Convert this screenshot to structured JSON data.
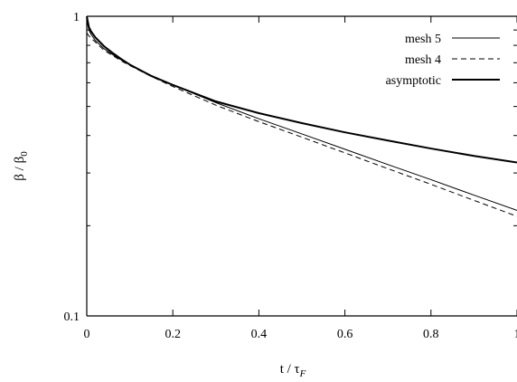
{
  "chart_data": {
    "type": "line",
    "xlabel": "t / τF",
    "xlabel_parts": {
      "main": "t / τ",
      "sub": "F"
    },
    "ylabel": "β / β0",
    "ylabel_parts": {
      "main": "β / β",
      "sub": "0"
    },
    "xlim": [
      0,
      1
    ],
    "ylim": [
      0.1,
      1
    ],
    "yscale": "log",
    "grid": false,
    "legend_position": "top-right",
    "x_ticks": [
      0,
      0.2,
      0.4,
      0.6,
      0.8,
      1
    ],
    "x_tick_labels": [
      "0",
      "0.2",
      "0.4",
      "0.6",
      "0.8",
      "1"
    ],
    "y_ticks": [
      0.1,
      1
    ],
    "y_tick_labels": [
      "0.1",
      "1"
    ],
    "series": [
      {
        "name": "mesh 5",
        "style": "thin-solid",
        "x": [
          0,
          0.005,
          0.01,
          0.02,
          0.04,
          0.06,
          0.08,
          0.1,
          0.15,
          0.2,
          0.3,
          0.4,
          0.5,
          0.6,
          0.7,
          0.8,
          0.9,
          1.0
        ],
        "y": [
          0.97,
          0.9,
          0.87,
          0.83,
          0.78,
          0.745,
          0.715,
          0.69,
          0.635,
          0.59,
          0.515,
          0.455,
          0.405,
          0.36,
          0.32,
          0.285,
          0.253,
          0.225
        ]
      },
      {
        "name": "mesh 4",
        "style": "dashed",
        "x": [
          0,
          0.005,
          0.01,
          0.02,
          0.04,
          0.06,
          0.08,
          0.1,
          0.15,
          0.2,
          0.3,
          0.4,
          0.5,
          0.6,
          0.7,
          0.8,
          0.9,
          1.0
        ],
        "y": [
          0.88,
          0.86,
          0.845,
          0.82,
          0.77,
          0.74,
          0.71,
          0.685,
          0.63,
          0.583,
          0.505,
          0.445,
          0.395,
          0.35,
          0.31,
          0.275,
          0.243,
          0.215
        ]
      },
      {
        "name": "asymptotic",
        "style": "thick-solid",
        "x": [
          0,
          0.005,
          0.01,
          0.02,
          0.04,
          0.06,
          0.08,
          0.1,
          0.15,
          0.2,
          0.3,
          0.4,
          0.5,
          0.6,
          0.7,
          0.8,
          0.9,
          1.0
        ],
        "y": [
          1.0,
          0.92,
          0.89,
          0.85,
          0.795,
          0.755,
          0.72,
          0.69,
          0.632,
          0.59,
          0.52,
          0.475,
          0.44,
          0.41,
          0.385,
          0.362,
          0.342,
          0.325
        ]
      }
    ]
  }
}
